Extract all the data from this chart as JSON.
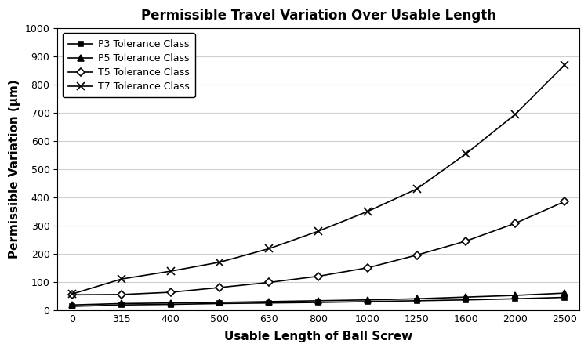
{
  "title": "Permissible Travel Variation Over Usable Length",
  "xlabel": "Usable Length of Ball Screw",
  "ylabel": "Permissible Variation (μm)",
  "x_labels": [
    "0",
    "315",
    "400",
    "500",
    "630",
    "800",
    "1000",
    "1250",
    "1600",
    "2000",
    "2500"
  ],
  "P3": [
    13,
    18,
    20,
    23,
    25,
    27,
    30,
    33,
    36,
    40,
    45
  ],
  "P5": [
    18,
    23,
    25,
    27,
    30,
    33,
    36,
    40,
    46,
    52,
    60
  ],
  "T5": [
    54,
    55,
    63,
    80,
    98,
    120,
    150,
    195,
    245,
    308,
    385
  ],
  "T7": [
    57,
    110,
    138,
    170,
    218,
    280,
    350,
    430,
    555,
    695,
    870
  ],
  "series": [
    {
      "label": "P3 Tolerance Class",
      "key": "P3",
      "marker": "s",
      "color": "#000000",
      "markersize": 5,
      "lw": 1.2,
      "markerfilled": true
    },
    {
      "label": "P5 Tolerance Class",
      "key": "P5",
      "marker": "^",
      "color": "#000000",
      "markersize": 6,
      "lw": 1.2,
      "markerfilled": true
    },
    {
      "label": "T5 Tolerance Class",
      "key": "T5",
      "marker": "D",
      "color": "#000000",
      "markersize": 5,
      "lw": 1.2,
      "markerfilled": false
    },
    {
      "label": "T7 Tolerance Class",
      "key": "T7",
      "marker": "x",
      "color": "#000000",
      "markersize": 7,
      "lw": 1.2,
      "markerfilled": false
    }
  ],
  "ylim": [
    0,
    1000
  ],
  "yticks": [
    0,
    100,
    200,
    300,
    400,
    500,
    600,
    700,
    800,
    900,
    1000
  ],
  "bg_color": "#ffffff",
  "grid_color": "#d0d0d0",
  "title_fontsize": 12,
  "label_fontsize": 11,
  "tick_fontsize": 9,
  "legend_fontsize": 9
}
